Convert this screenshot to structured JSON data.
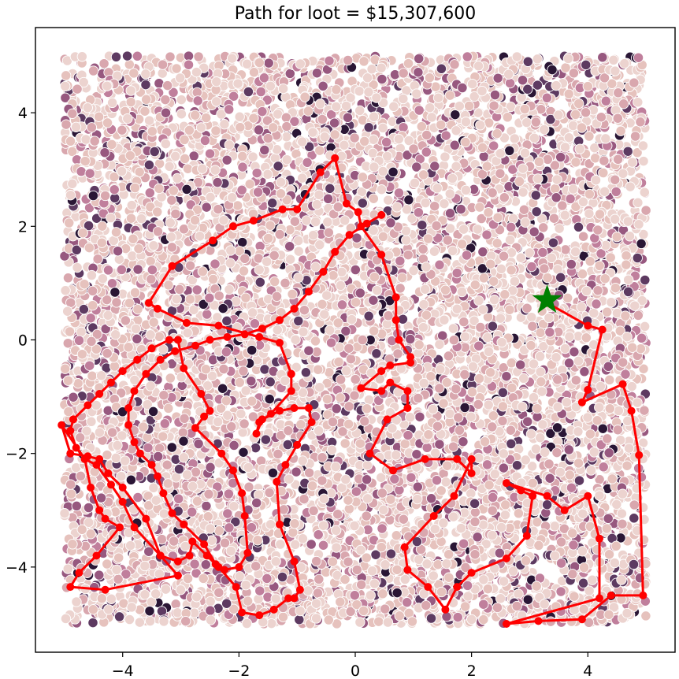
{
  "chart_data": {
    "type": "scatter",
    "title": "Path for loot = $15,307,600",
    "xlabel": "",
    "ylabel": "",
    "xlim": [
      -5.5,
      5.5
    ],
    "ylim": [
      -5.5,
      5.5
    ],
    "xticks": [
      -4,
      -2,
      0,
      2,
      4
    ],
    "yticks": [
      -4,
      -2,
      0,
      2,
      4
    ],
    "xtick_labels": [
      "−4",
      "−2",
      "0",
      "2",
      "4"
    ],
    "ytick_labels": [
      "−4",
      "−2",
      "0",
      "2",
      "4"
    ],
    "grid": false,
    "background_points": {
      "n": 9000,
      "range": [
        -5,
        5
      ],
      "palette": [
        "#ecd3cf",
        "#e6c2bd",
        "#d9a7ae",
        "#c07f9c",
        "#97587f",
        "#5d3a61",
        "#2a1635"
      ]
    },
    "path_color": "#ff0000",
    "start_marker": {
      "x": 3.3,
      "y": 0.7,
      "color": "#008000",
      "shape": "star"
    },
    "path": [
      [
        3.3,
        0.7
      ],
      [
        3.3,
        0.65
      ],
      [
        4.0,
        0.25
      ],
      [
        4.25,
        0.18
      ],
      [
        4.0,
        -0.88
      ],
      [
        3.9,
        -1.1
      ],
      [
        4.6,
        -0.78
      ],
      [
        4.75,
        -1.25
      ],
      [
        4.88,
        -2.03
      ],
      [
        4.95,
        -4.5
      ],
      [
        4.4,
        -4.5
      ],
      [
        3.9,
        -4.92
      ],
      [
        3.15,
        -4.95
      ],
      [
        2.6,
        -5.0
      ],
      [
        4.2,
        -4.55
      ],
      [
        4.2,
        -3.5
      ],
      [
        4.0,
        -2.75
      ],
      [
        3.6,
        -3.0
      ],
      [
        3.3,
        -2.75
      ],
      [
        2.6,
        -2.52
      ],
      [
        2.85,
        -2.65
      ],
      [
        3.05,
        -2.75
      ],
      [
        2.95,
        -3.45
      ],
      [
        2.6,
        -3.85
      ],
      [
        2.0,
        -4.1
      ],
      [
        1.75,
        -4.35
      ],
      [
        1.55,
        -4.75
      ],
      [
        1.25,
        -4.35
      ],
      [
        0.9,
        -4.05
      ],
      [
        0.85,
        -3.65
      ],
      [
        1.35,
        -3.1
      ],
      [
        1.7,
        -2.75
      ],
      [
        2.0,
        -2.1
      ],
      [
        2.0,
        -2.35
      ],
      [
        1.75,
        -2.1
      ],
      [
        1.2,
        -2.1
      ],
      [
        0.65,
        -2.3
      ],
      [
        0.25,
        -2.0
      ],
      [
        0.55,
        -1.4
      ],
      [
        0.9,
        -1.2
      ],
      [
        0.9,
        -0.9
      ],
      [
        0.6,
        -0.75
      ],
      [
        0.45,
        -0.9
      ],
      [
        0.1,
        -0.85
      ],
      [
        0.45,
        -0.55
      ],
      [
        0.6,
        -0.45
      ],
      [
        0.95,
        -0.4
      ],
      [
        0.95,
        -0.3
      ],
      [
        0.75,
        0.0
      ],
      [
        0.7,
        0.35
      ],
      [
        0.7,
        0.75
      ],
      [
        0.45,
        1.5
      ],
      [
        0.1,
        2.0
      ],
      [
        0.05,
        2.25
      ],
      [
        -0.15,
        2.4
      ],
      [
        -0.35,
        3.2
      ],
      [
        -0.6,
        2.95
      ],
      [
        -1.0,
        2.3
      ],
      [
        -1.25,
        2.3
      ],
      [
        -1.75,
        2.1
      ],
      [
        -2.1,
        2.0
      ],
      [
        -2.45,
        1.75
      ],
      [
        -3.15,
        1.3
      ],
      [
        -3.55,
        0.65
      ],
      [
        -3.4,
        0.55
      ],
      [
        -2.9,
        0.3
      ],
      [
        -2.35,
        0.25
      ],
      [
        -1.65,
        0.05
      ],
      [
        -1.3,
        -0.05
      ],
      [
        -1.1,
        -0.6
      ],
      [
        -1.1,
        -0.9
      ],
      [
        -1.45,
        -1.3
      ],
      [
        -1.65,
        -1.45
      ],
      [
        -1.7,
        -1.65
      ],
      [
        -1.6,
        -1.4
      ],
      [
        -1.3,
        -1.25
      ],
      [
        -1.05,
        -1.2
      ],
      [
        -0.8,
        -1.2
      ],
      [
        -0.75,
        -1.45
      ],
      [
        -1.0,
        -1.85
      ],
      [
        -1.2,
        -2.2
      ],
      [
        -1.35,
        -2.5
      ],
      [
        -1.3,
        -3.25
      ],
      [
        -1.05,
        -3.9
      ],
      [
        -0.95,
        -4.4
      ],
      [
        -1.05,
        -4.55
      ],
      [
        -1.15,
        -4.55
      ],
      [
        -1.4,
        -4.75
      ],
      [
        -1.65,
        -4.85
      ],
      [
        -1.95,
        -4.8
      ],
      [
        -2.05,
        -4.35
      ],
      [
        -2.35,
        -4.0
      ],
      [
        -2.55,
        -3.8
      ],
      [
        -2.8,
        -3.55
      ],
      [
        -2.85,
        -3.8
      ],
      [
        -3.05,
        -3.9
      ],
      [
        -3.35,
        -3.8
      ],
      [
        -3.6,
        -3.15
      ],
      [
        -4.0,
        -2.6
      ],
      [
        -4.25,
        -2.35
      ],
      [
        -4.4,
        -2.1
      ],
      [
        -4.6,
        -2.05
      ],
      [
        -4.9,
        -2.0
      ],
      [
        -5.05,
        -1.5
      ],
      [
        -4.65,
        -2.1
      ],
      [
        -4.55,
        -2.6
      ],
      [
        -4.4,
        -3.0
      ],
      [
        -4.3,
        -3.15
      ],
      [
        -4.05,
        -3.3
      ],
      [
        -4.45,
        -3.8
      ],
      [
        -4.75,
        -4.1
      ],
      [
        -4.9,
        -4.35
      ],
      [
        -4.3,
        -4.4
      ],
      [
        -3.05,
        -4.15
      ],
      [
        -3.35,
        -3.8
      ],
      [
        -3.8,
        -3.3
      ],
      [
        -4.0,
        -2.85
      ],
      [
        -4.2,
        -2.55
      ],
      [
        -4.45,
        -2.2
      ],
      [
        -4.65,
        -2.1
      ],
      [
        -4.8,
        -1.9
      ],
      [
        -4.9,
        -1.6
      ],
      [
        -4.85,
        -1.4
      ],
      [
        -4.6,
        -1.15
      ],
      [
        -4.4,
        -0.95
      ],
      [
        -4.2,
        -0.75
      ],
      [
        -4.0,
        -0.55
      ],
      [
        -3.75,
        -0.35
      ],
      [
        -3.5,
        -0.15
      ],
      [
        -3.2,
        0.0
      ],
      [
        -3.05,
        0.0
      ],
      [
        -2.95,
        -0.5
      ],
      [
        -2.65,
        -0.95
      ],
      [
        -2.5,
        -1.25
      ],
      [
        -2.6,
        -1.35
      ],
      [
        -2.75,
        -1.55
      ],
      [
        -2.3,
        -2.0
      ],
      [
        -2.1,
        -2.3
      ],
      [
        -1.95,
        -2.7
      ],
      [
        -1.9,
        -3.1
      ],
      [
        -1.85,
        -3.75
      ],
      [
        -2.0,
        -4.0
      ],
      [
        -2.25,
        -4.05
      ],
      [
        -2.4,
        -3.95
      ],
      [
        -2.6,
        -3.6
      ],
      [
        -2.95,
        -3.25
      ],
      [
        -3.15,
        -3.05
      ],
      [
        -3.3,
        -2.7
      ],
      [
        -3.4,
        -2.4
      ],
      [
        -3.5,
        -2.2
      ],
      [
        -3.7,
        -2.0
      ],
      [
        -3.8,
        -1.8
      ],
      [
        -3.9,
        -1.5
      ],
      [
        -3.9,
        -1.2
      ],
      [
        -3.8,
        -0.9
      ],
      [
        -3.6,
        -0.6
      ],
      [
        -3.35,
        -0.35
      ],
      [
        -3.1,
        -0.2
      ],
      [
        -2.75,
        -0.1
      ],
      [
        -2.5,
        0.0
      ],
      [
        -2.2,
        0.05
      ],
      [
        -1.9,
        0.1
      ],
      [
        -1.6,
        0.2
      ],
      [
        -1.3,
        0.35
      ],
      [
        -1.05,
        0.55
      ],
      [
        -0.8,
        0.85
      ],
      [
        -0.55,
        1.2
      ],
      [
        -0.35,
        1.55
      ],
      [
        -0.1,
        1.85
      ],
      [
        0.2,
        2.05
      ],
      [
        0.45,
        2.2
      ]
    ]
  }
}
